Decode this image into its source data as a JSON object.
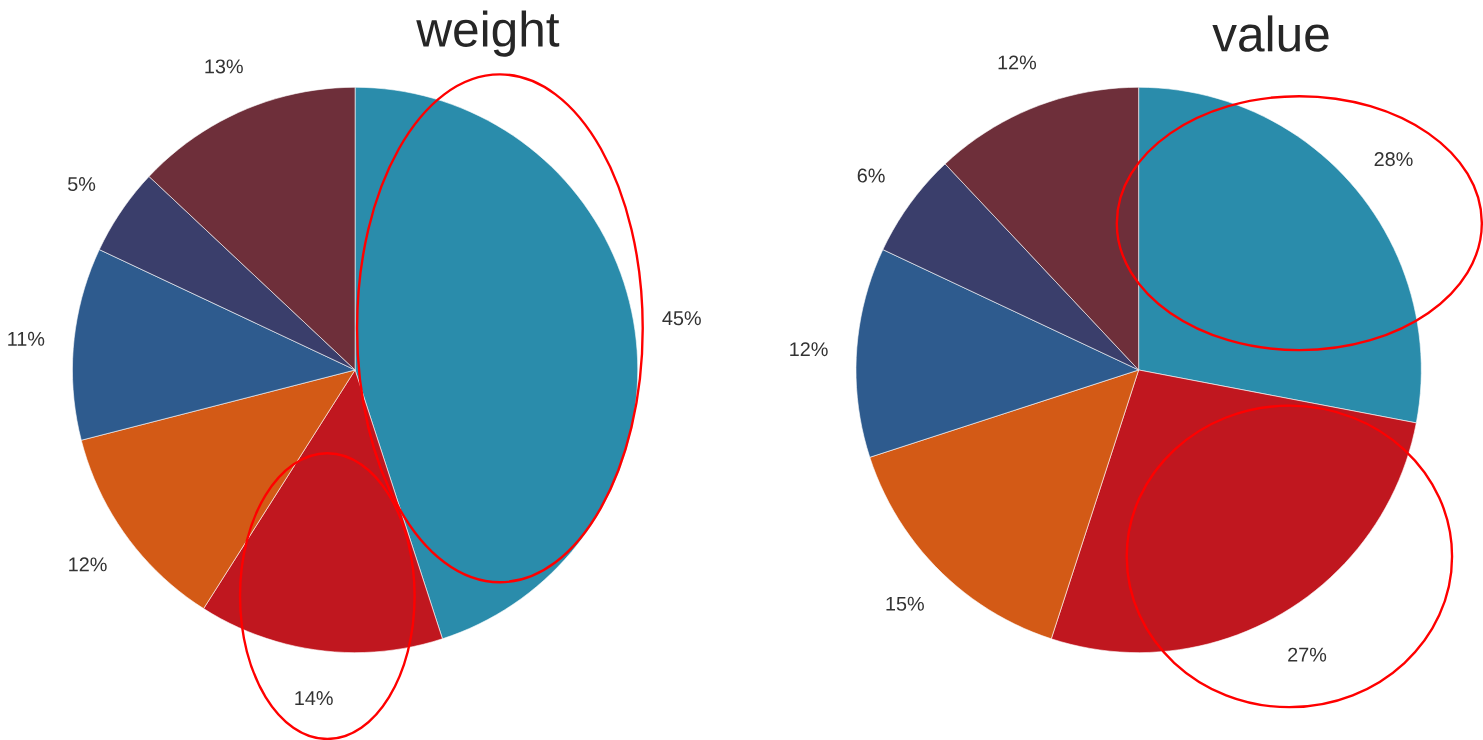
{
  "chart_data": [
    {
      "type": "pie",
      "title": "weight",
      "categories": [
        null,
        null,
        null,
        null,
        null,
        null
      ],
      "values": [
        45,
        14,
        12,
        11,
        5,
        13
      ],
      "value_labels": [
        "45%",
        "14%",
        "12%",
        "11%",
        "5%",
        "13%"
      ],
      "colors": [
        "#2a8cab",
        "#c0171f",
        "#d35a16",
        "#2e5b8e",
        "#3a3e6b",
        "#6e2f3a"
      ]
    },
    {
      "type": "pie",
      "title": "value",
      "categories": [
        null,
        null,
        null,
        null,
        null,
        null
      ],
      "values": [
        28,
        27,
        15,
        12,
        6,
        12
      ],
      "value_labels": [
        "28%",
        "27%",
        "15%",
        "12%",
        "6%",
        "12%"
      ],
      "colors": [
        "#2a8cab",
        "#c0171f",
        "#d35a16",
        "#2e5b8e",
        "#3a3e6b",
        "#6e2f3a"
      ]
    }
  ]
}
